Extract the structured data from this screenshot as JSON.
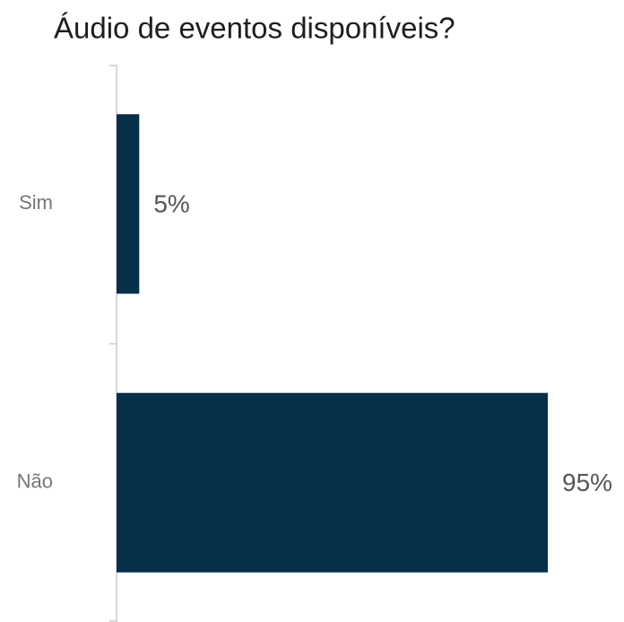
{
  "chart_data": {
    "type": "bar",
    "orientation": "horizontal",
    "title": "Áudio de eventos disponíveis?",
    "categories": [
      "Sim",
      "Não"
    ],
    "values": [
      5,
      95
    ],
    "value_labels": [
      "5%",
      "95%"
    ],
    "color": "#06304a"
  }
}
